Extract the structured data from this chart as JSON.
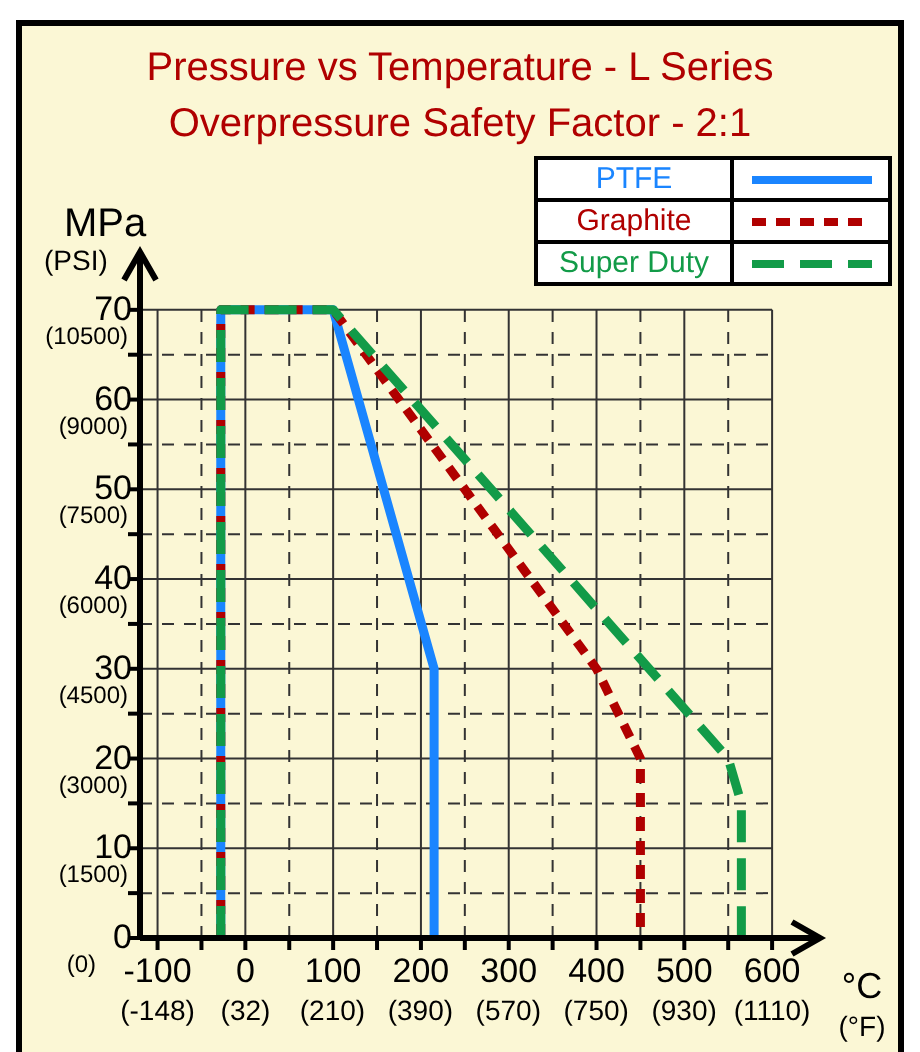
{
  "chart_data": {
    "type": "line",
    "title": "Pressure vs Temperature - L Series",
    "subtitle": "Overpressure Safety Factor - 2:1",
    "xlabel": "°C",
    "x2label": "(°F)",
    "ylabel": "MPa",
    "y2label": "(PSI)",
    "xlim": [
      -120,
      650
    ],
    "ylim": [
      0,
      76
    ],
    "x2lim": [
      -184,
      1200
    ],
    "y2lim": [
      0,
      11400
    ],
    "xticks": [
      -100,
      {
        "value": -50,
        "label": null
      },
      0,
      {
        "value": 50,
        "label": null
      },
      100,
      {
        "value": 150,
        "label": null
      },
      200,
      {
        "value": 250,
        "label": null
      },
      300,
      {
        "value": 350,
        "label": null
      },
      400,
      {
        "value": 450,
        "label": null
      },
      500,
      {
        "value": 550,
        "label": null
      },
      600
    ],
    "yticks": [
      0,
      {
        "value": 5,
        "label": null
      },
      10,
      {
        "value": 15,
        "label": null
      },
      20,
      {
        "value": 25,
        "label": null
      },
      30,
      {
        "value": 35,
        "label": null
      },
      40,
      {
        "value": 45,
        "label": null
      },
      50,
      {
        "value": 55,
        "label": null
      },
      60,
      {
        "value": 65,
        "label": null
      },
      70
    ],
    "x2ticks": [
      {
        "value": -148,
        "label": "(-148)"
      },
      {
        "value": 32,
        "label": "(32)"
      },
      {
        "value": 210,
        "label": "(210)"
      },
      {
        "value": 390,
        "label": "(390)"
      },
      {
        "value": 570,
        "label": "(570)"
      },
      {
        "value": 750,
        "label": "(750)"
      },
      {
        "value": 930,
        "label": "(930)"
      },
      {
        "value": 1110,
        "label": "(1110)"
      }
    ],
    "y2ticks": [
      {
        "value": 0,
        "label": "(0)"
      },
      {
        "value": 1500,
        "label": "(1500)"
      },
      {
        "value": 3000,
        "label": "(3000)"
      },
      {
        "value": 4500,
        "label": "(4500)"
      },
      {
        "value": 6000,
        "label": "(6000)"
      },
      {
        "value": 7500,
        "label": "(7500)"
      },
      {
        "value": 9000,
        "label": "(9000)"
      },
      {
        "value": 10500,
        "label": "(10500)"
      }
    ],
    "grid": true,
    "legend": "top right",
    "marker": "none",
    "series": [
      {
        "name": "PTFE",
        "color": "#1a85ff",
        "line_style": "solid",
        "x": [
          -28,
          -28,
          100,
          215,
          215
        ],
        "values": [
          0,
          70,
          70,
          30,
          0
        ]
      },
      {
        "name": "Graphite",
        "color": "#b00000",
        "line_style": "dotted",
        "x": [
          -28,
          -28,
          100,
          400,
          450,
          450
        ],
        "values": [
          0,
          70,
          70,
          30,
          20,
          0
        ]
      },
      {
        "name": "Super Duty",
        "color": "#129b48",
        "line_style": "dashed",
        "x": [
          -28,
          -28,
          100,
          550,
          565,
          565
        ],
        "values": [
          0,
          70,
          70,
          20,
          15,
          0
        ]
      }
    ]
  }
}
